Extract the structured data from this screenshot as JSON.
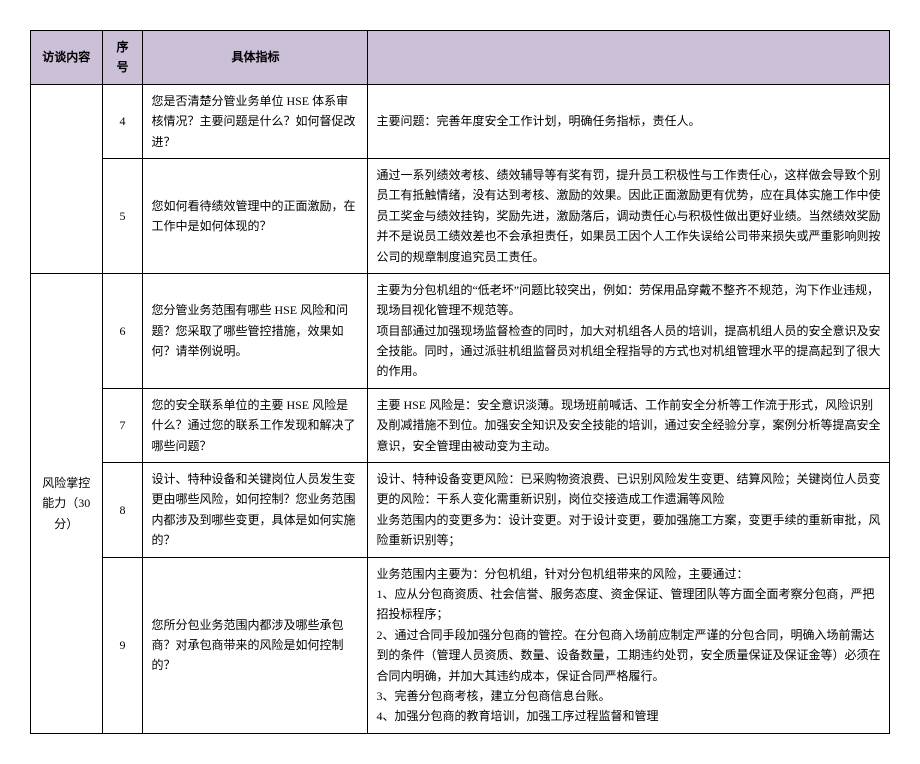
{
  "headers": {
    "category": "访谈内容",
    "number": "序号",
    "indicator": "具体指标",
    "answer": ""
  },
  "category1": "",
  "category2": "风险掌控能力（30分）",
  "rows": {
    "r4": {
      "num": "4",
      "ind": "您是否清楚分管业务单位 HSE 体系审核情况？主要问题是什么？如何督促改进？",
      "ans": "主要问题：完善年度安全工作计划，明确任务指标，责任人。"
    },
    "r5": {
      "num": "5",
      "ind": "您如何看待绩效管理中的正面激励，在工作中是如何体现的？",
      "ans": "通过一系列绩效考核、绩效辅导等有奖有罚，提升员工积极性与工作责任心，这样做会导致个别员工有抵触情绪，没有达到考核、激励的效果。因此正面激励更有优势，应在具体实施工作中使员工奖金与绩效挂钩，奖励先进，激励落后，调动责任心与积极性做出更好业绩。当然绩效奖励并不是说员工绩效差也不会承担责任，如果员工因个人工作失误给公司带来损失或严重影响则按公司的规章制度追究员工责任。"
    },
    "r6": {
      "num": "6",
      "ind": "您分管业务范围有哪些 HSE 风险和问题？您采取了哪些管控措施，效果如何？请举例说明。",
      "ans": "主要为分包机组的“低老坏”问题比较突出，例如：劳保用品穿戴不整齐不规范，沟下作业违规，现场目视化管理不规范等。\n项目部通过加强现场监督检查的同时，加大对机组各人员的培训，提高机组人员的安全意识及安全技能。同时，通过派驻机组监督员对机组全程指导的方式也对机组管理水平的提高起到了很大的作用。"
    },
    "r7": {
      "num": "7",
      "ind": "您的安全联系单位的主要 HSE 风险是什么？通过您的联系工作发现和解决了哪些问题？",
      "ans": "主要 HSE 风险是：安全意识淡薄。现场班前喊话、工作前安全分析等工作流于形式，风险识别及削减措施不到位。加强安全知识及安全技能的培训，通过安全经验分享，案例分析等提高安全意识，安全管理由被动变为主动。"
    },
    "r8": {
      "num": "8",
      "ind": "设计、特种设备和关键岗位人员发生变更由哪些风险，如何控制？您业务范围内都涉及到哪些变更，具体是如何实施的？",
      "ans": "设计、特种设备变更风险：已采购物资浪费、已识别风险发生变更、结算风险；关键岗位人员变更的风险：干系人变化需重新识别，岗位交接造成工作遗漏等风险\n业务范围内的变更多为：设计变更。对于设计变更，要加强施工方案，变更手续的重新审批，风险重新识别等；"
    },
    "r9": {
      "num": "9",
      "ind": "您所分包业务范围内都涉及哪些承包商？对承包商带来的风险是如何控制的？",
      "ans": "业务范围内主要为：分包机组，针对分包机组带来的风险，主要通过：\n1、应从分包商资质、社会信誉、服务态度、资金保证、管理团队等方面全面考察分包商，严把招投标程序；\n2、通过合同手段加强分包商的管控。在分包商入场前应制定严谨的分包合同，明确入场前需达到的条件（管理人员资质、数量、设备数量，工期违约处罚，安全质量保证及保证金等）必须在合同内明确，并加大其违约成本，保证合同严格履行。\n3、完善分包商考核，建立分包商信息台账。\n4、加强分包商的教育培训，加强工序过程监督和管理"
    }
  }
}
